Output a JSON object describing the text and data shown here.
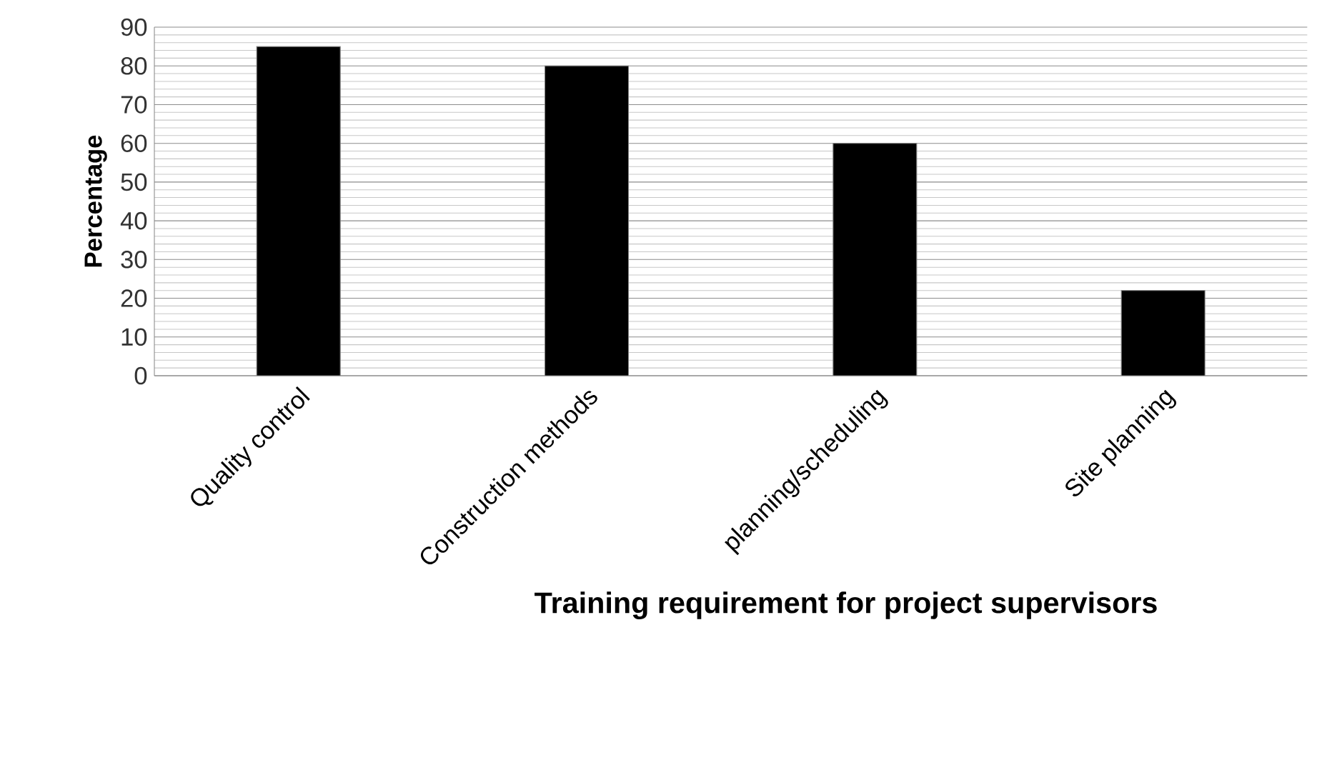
{
  "chart_data": {
    "type": "bar",
    "xlabel": "Training requirement for project supervisors",
    "ylabel": "Percentage",
    "categories": [
      "Quality control",
      "Construction methods",
      "planning/scheduling",
      "Site planning"
    ],
    "values": [
      85,
      80,
      60,
      22
    ],
    "color": "#000000",
    "ylim": [
      0,
      90
    ],
    "yticks": [
      0,
      10,
      20,
      30,
      40,
      50,
      60,
      70,
      80,
      90
    ],
    "grid": "y"
  }
}
